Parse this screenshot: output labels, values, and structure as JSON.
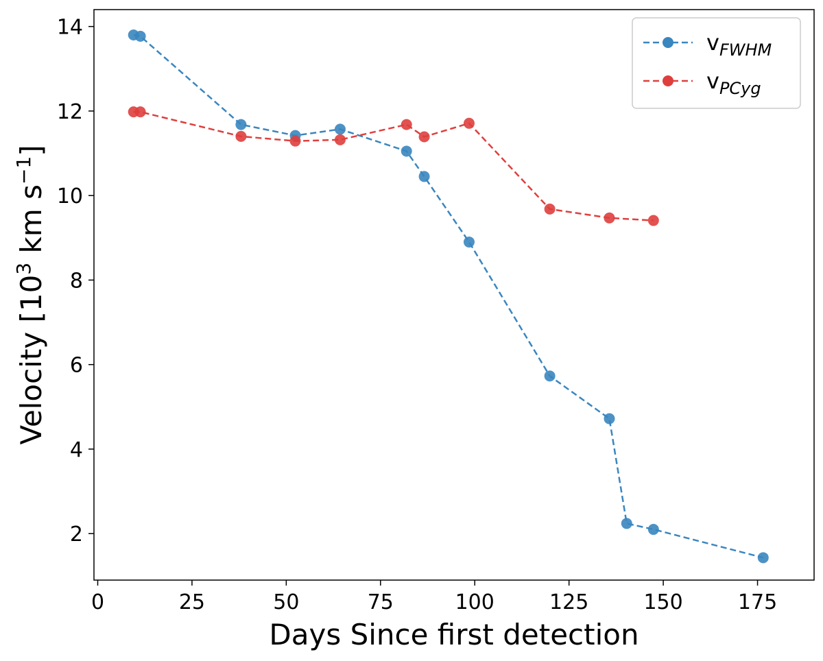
{
  "chart_data": {
    "type": "line",
    "xlabel": "Days Since first detection",
    "ylabel": {
      "prefix": "Velocity [10",
      "exp1": "3",
      "middle": " km s",
      "exp2": "−1",
      "suffix": "]"
    },
    "xlim": [
      -1,
      190
    ],
    "ylim": [
      0.9,
      14.4
    ],
    "x_ticks": [
      0,
      25,
      50,
      75,
      100,
      125,
      150,
      175
    ],
    "y_ticks": [
      2,
      4,
      6,
      8,
      10,
      12,
      14
    ],
    "grid": false,
    "legend_position": "top-right",
    "series": [
      {
        "name": {
          "base": "v",
          "sub": "FWHM"
        },
        "color": "#3A86BF",
        "line_style": "dashed",
        "marker": "circle",
        "points": [
          [
            9.5,
            13.8
          ],
          [
            11.3,
            13.77
          ],
          [
            38.0,
            11.68
          ],
          [
            52.4,
            11.42
          ],
          [
            64.3,
            11.57
          ],
          [
            81.9,
            11.05
          ],
          [
            86.6,
            10.45
          ],
          [
            98.5,
            8.9
          ],
          [
            119.9,
            5.73
          ],
          [
            135.7,
            4.72
          ],
          [
            140.3,
            2.24
          ],
          [
            147.4,
            2.1
          ],
          [
            176.5,
            1.43
          ]
        ]
      },
      {
        "name": {
          "base": "v",
          "sub": "PCyg"
        },
        "color": "#DE3F3D",
        "line_style": "dashed",
        "marker": "circle",
        "points": [
          [
            9.5,
            11.98
          ],
          [
            11.3,
            11.98
          ],
          [
            38.0,
            11.4
          ],
          [
            52.4,
            11.29
          ],
          [
            64.3,
            11.32
          ],
          [
            81.9,
            11.68
          ],
          [
            86.6,
            11.39
          ],
          [
            98.5,
            11.71
          ],
          [
            119.9,
            9.68
          ],
          [
            135.7,
            9.47
          ],
          [
            147.4,
            9.41
          ]
        ]
      }
    ]
  }
}
